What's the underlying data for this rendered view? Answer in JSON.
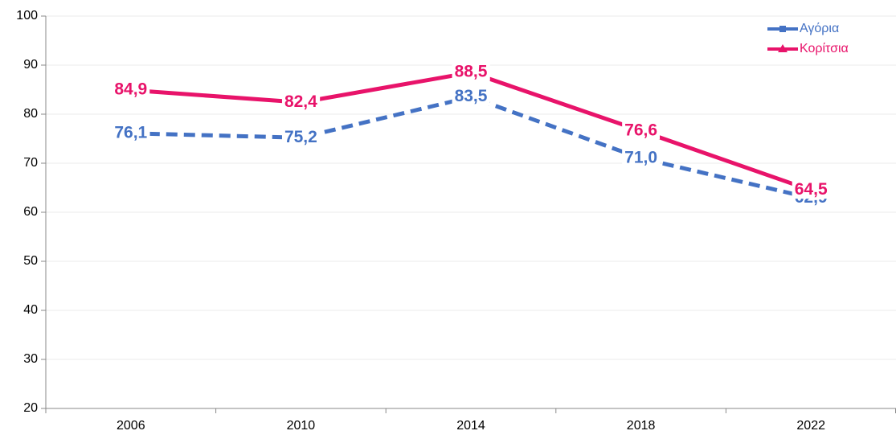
{
  "chart_data": {
    "type": "line",
    "categories": [
      "2006",
      "2010",
      "2014",
      "2018",
      "2022"
    ],
    "series": [
      {
        "name": "Αγόρια",
        "color": "#4472c4",
        "dashed": true,
        "marker": "square",
        "values": [
          76.1,
          75.2,
          83.5,
          71.0,
          62.9
        ],
        "value_labels": [
          "76,1",
          "75,2",
          "83,5",
          "71,0",
          "62,9"
        ]
      },
      {
        "name": "Κορίτσια",
        "color": "#e8136a",
        "dashed": false,
        "marker": "triangle",
        "values": [
          84.9,
          82.4,
          88.5,
          76.6,
          64.5
        ],
        "value_labels": [
          "84,9",
          "82,4",
          "88,5",
          "76,6",
          "64,5"
        ]
      }
    ],
    "ylim": [
      20,
      100
    ],
    "yticks": [
      20,
      30,
      40,
      50,
      60,
      70,
      80,
      90,
      100
    ],
    "grid": true,
    "legend": "top-right"
  }
}
